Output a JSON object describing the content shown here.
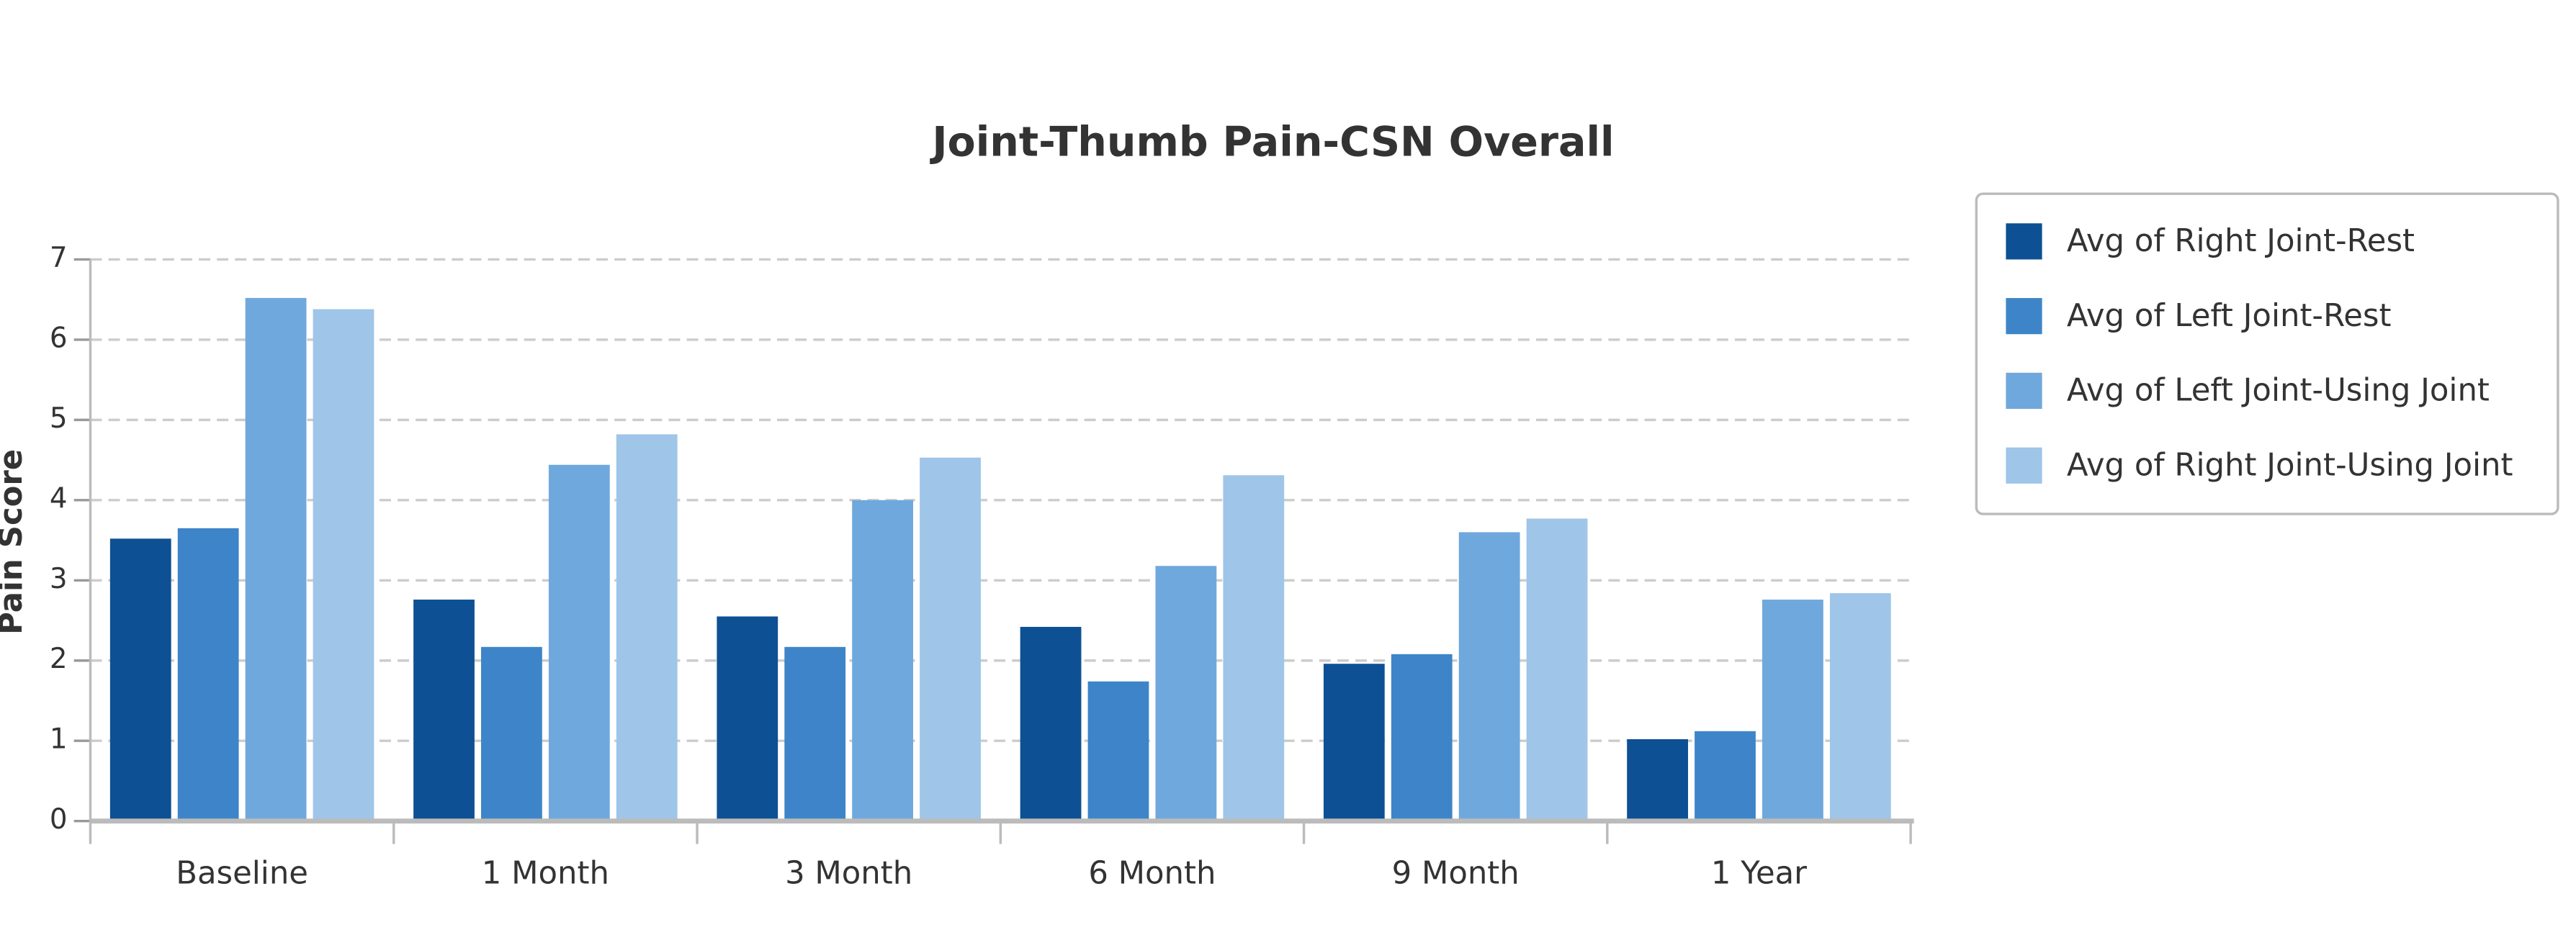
{
  "chart_data": {
    "type": "bar",
    "title": "Joint-Thumb Pain-CSN Overall",
    "y_axis_label": "Pain Score",
    "categories": [
      "Baseline",
      "1 Month",
      "3 Month",
      "6 Month",
      "9 Month",
      "1 Year"
    ],
    "series": [
      {
        "name": "Avg of Right Joint-Rest",
        "color": "#0d5093",
        "values": [
          3.52,
          2.76,
          2.55,
          2.42,
          1.96,
          1.02
        ]
      },
      {
        "name": "Avg of Left Joint-Rest",
        "color": "#3d85c8",
        "values": [
          3.65,
          2.17,
          2.17,
          1.74,
          2.08,
          1.12
        ]
      },
      {
        "name": "Avg of Left Joint-Using Joint",
        "color": "#6fa8dc",
        "values": [
          6.52,
          4.44,
          4.0,
          3.18,
          3.6,
          2.76
        ]
      },
      {
        "name": "Avg of Right Joint-Using Joint",
        "color": "#9fc5e8",
        "values": [
          6.38,
          4.82,
          4.53,
          4.31,
          3.77,
          2.84
        ]
      }
    ],
    "ylim": [
      0,
      7
    ],
    "yticks": [
      0,
      1,
      2,
      3,
      4,
      5,
      6,
      7
    ],
    "grid": true,
    "legend": "right"
  }
}
